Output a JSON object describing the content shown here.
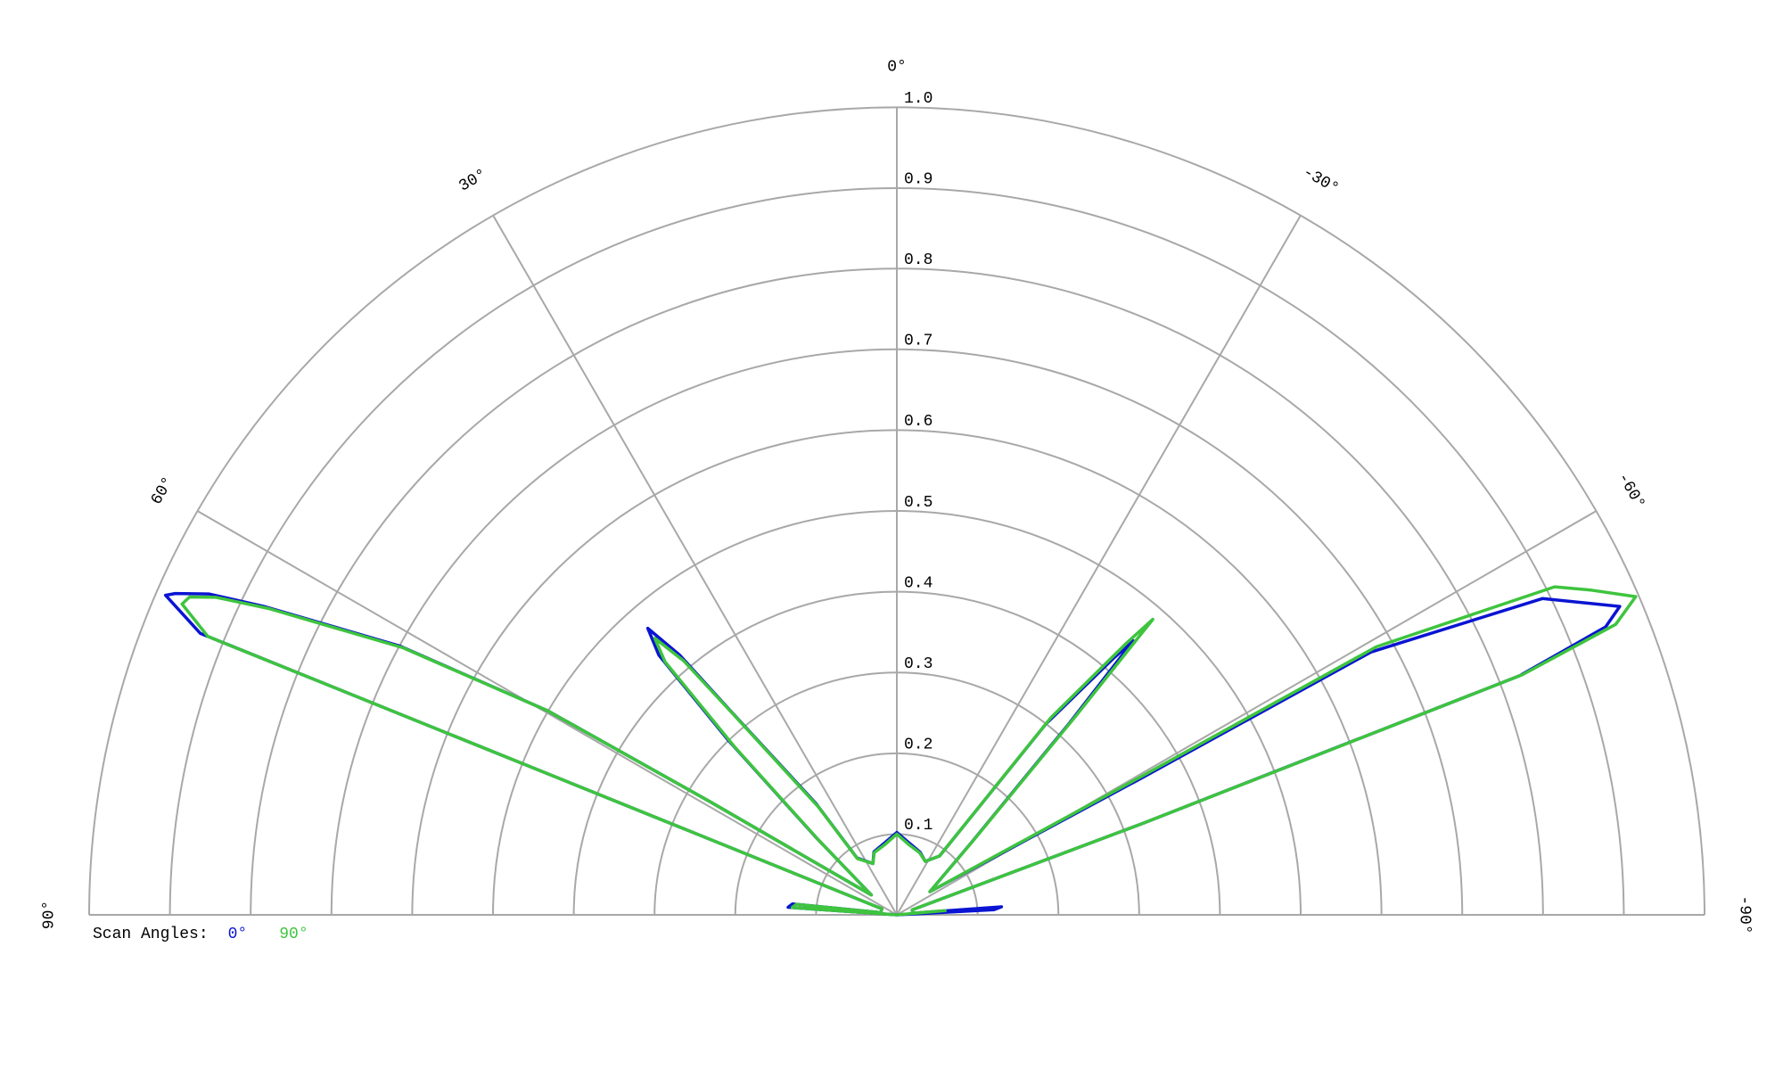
{
  "chart_data": {
    "type": "polar",
    "rlim": [
      0,
      1
    ],
    "rticks": [
      0.1,
      0.2,
      0.3,
      0.4,
      0.5,
      0.6,
      0.7,
      0.8,
      0.9,
      {
        "value": 1,
        "label": "1.0"
      }
    ],
    "thetalim": [
      -90,
      90
    ],
    "thetaticks": [
      {
        "value": 90,
        "label": "90°"
      },
      {
        "value": 60,
        "label": "60°"
      },
      {
        "value": 30,
        "label": "30°"
      },
      {
        "value": 0,
        "label": "0°"
      },
      {
        "value": -30,
        "label": "-30°"
      },
      {
        "value": -60,
        "label": "-60°"
      },
      {
        "value": -90,
        "label": "-90°"
      }
    ],
    "grid": true,
    "legend_title": "Scan Angles:",
    "legend": "bottom-left",
    "series": [
      {
        "name": "0°",
        "color": "#0a14d2",
        "theta": [
          90,
          86,
          84,
          82,
          68,
          68,
          66.4,
          66,
          65,
          64,
          61.6,
          59.7,
          58.8,
          52,
          46.3,
          44,
          42.5,
          41,
          39.9,
          39.2,
          36,
          35,
          25,
          20,
          10,
          0,
          -10,
          -20,
          -28,
          -36,
          -38,
          -40.2,
          -40.8,
          -42,
          -45.9,
          -55,
          -60.8,
          -61,
          -63.9,
          -66.9,
          -67.9,
          -69,
          -69.6,
          -72,
          -84,
          -85.6,
          -87,
          -90
        ],
        "r": [
          0,
          0.135,
          0.13,
          0.02,
          0.02,
          0.93,
          0.988,
          0.978,
          0.94,
          0.87,
          0.7,
          0.5,
          0.27,
          0.04,
          0.137,
          0.3,
          0.436,
          0.47,
          0.419,
          0.325,
          0.17,
          0.086,
          0.07,
          0.083,
          0.09,
          0.102,
          0.09,
          0.083,
          0.075,
          0.09,
          0.3,
          0.417,
          0.448,
          0.32,
          0.128,
          0.05,
          0.348,
          0.671,
          0.89,
          0.973,
          0.947,
          0.826,
          0.324,
          0.02,
          0.02,
          0.13,
          0.12,
          0
        ]
      },
      {
        "name": "90°",
        "color": "#3ec43e",
        "theta": [
          90,
          86,
          84,
          82,
          68,
          68,
          66.5,
          65.8,
          65,
          64,
          61.6,
          59.7,
          58.8,
          52,
          46.3,
          44,
          42.5,
          41.2,
          40,
          39.2,
          36,
          35,
          25,
          20,
          10,
          0,
          -10,
          -20,
          -28,
          -36,
          -38,
          -40.2,
          -40.9,
          -42,
          -45.9,
          -55,
          -60.5,
          -60.8,
          -63.5,
          -64.9,
          -66.7,
          -68,
          -69,
          -69.6,
          -72,
          -84,
          -85,
          -90
        ],
        "r": [
          0,
          0.13,
          0.125,
          0.02,
          0.02,
          0.92,
          0.965,
          0.96,
          0.93,
          0.865,
          0.695,
          0.5,
          0.27,
          0.04,
          0.135,
          0.29,
          0.425,
          0.455,
          0.41,
          0.32,
          0.165,
          0.085,
          0.07,
          0.082,
          0.088,
          0.1,
          0.088,
          0.082,
          0.075,
          0.09,
          0.31,
          0.44,
          0.484,
          0.33,
          0.13,
          0.05,
          0.35,
          0.68,
          0.91,
          0.948,
          0.996,
          0.96,
          0.83,
          0.325,
          0.02,
          0.02,
          0.06,
          0
        ]
      }
    ]
  }
}
